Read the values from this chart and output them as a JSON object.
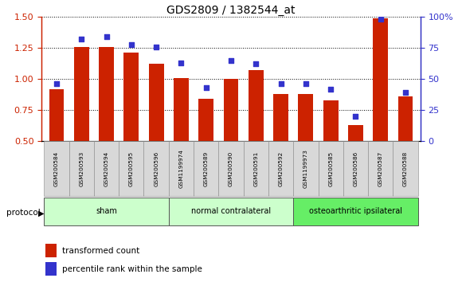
{
  "title": "GDS2809 / 1382544_at",
  "samples": [
    "GSM200584",
    "GSM200593",
    "GSM200594",
    "GSM200595",
    "GSM200596",
    "GSM1199974",
    "GSM200589",
    "GSM200590",
    "GSM200591",
    "GSM200592",
    "GSM1199973",
    "GSM200585",
    "GSM200586",
    "GSM200587",
    "GSM200588"
  ],
  "red_values": [
    0.92,
    1.26,
    1.26,
    1.21,
    1.12,
    1.01,
    0.84,
    1.0,
    1.07,
    0.88,
    0.88,
    0.83,
    0.63,
    1.49,
    0.86
  ],
  "blue_values": [
    46,
    82,
    84,
    78,
    76,
    63,
    43,
    65,
    62,
    46,
    46,
    42,
    20,
    98,
    39
  ],
  "ylim_left": [
    0.5,
    1.5
  ],
  "ylim_right": [
    0,
    100
  ],
  "yticks_left": [
    0.5,
    0.75,
    1.0,
    1.25,
    1.5
  ],
  "yticks_right": [
    0,
    25,
    50,
    75,
    100
  ],
  "ytick_labels_right": [
    "0",
    "25",
    "50",
    "75",
    "100%"
  ],
  "red_color": "#cc2200",
  "blue_color": "#3333cc",
  "bar_width": 0.6,
  "legend_items": [
    "transformed count",
    "percentile rank within the sample"
  ],
  "protocol_label": "protocol",
  "group_defs": [
    {
      "start": 0,
      "end": 5,
      "label": "sham",
      "color": "#ccffcc"
    },
    {
      "start": 5,
      "end": 10,
      "label": "normal contralateral",
      "color": "#ccffcc"
    },
    {
      "start": 10,
      "end": 15,
      "label": "osteoarthritic ipsilateral",
      "color": "#66ee66"
    }
  ]
}
